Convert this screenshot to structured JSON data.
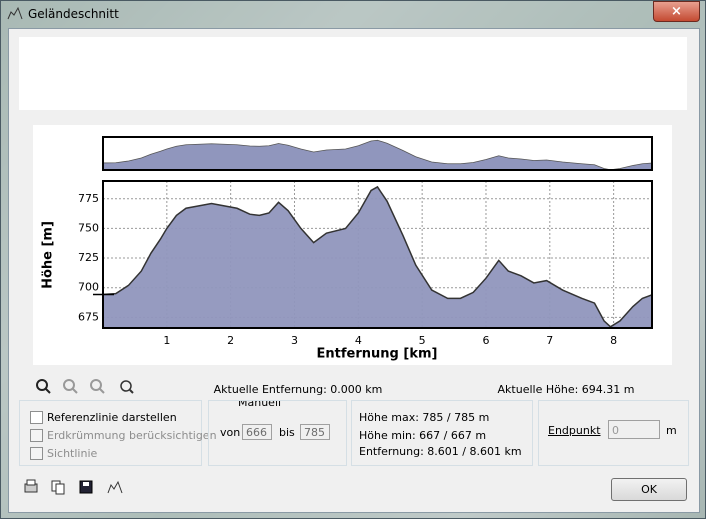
{
  "window": {
    "title": "Geländeschnitt"
  },
  "chart_data": {
    "type": "area",
    "xlabel": "Entfernung [km]",
    "ylabel": "Höhe [m]",
    "x": [
      0,
      0.2,
      0.4,
      0.6,
      0.75,
      0.9,
      1.0,
      1.15,
      1.3,
      1.5,
      1.7,
      1.9,
      2.1,
      2.3,
      2.45,
      2.6,
      2.75,
      2.9,
      3.1,
      3.3,
      3.5,
      3.8,
      4.0,
      4.2,
      4.3,
      4.45,
      4.7,
      4.9,
      5.15,
      5.4,
      5.6,
      5.8,
      6.0,
      6.2,
      6.35,
      6.55,
      6.75,
      6.95,
      7.2,
      7.5,
      7.7,
      7.85,
      7.95,
      8.1,
      8.3,
      8.45,
      8.601
    ],
    "series": [
      {
        "color": "#9096bd",
        "values": [
          694.31,
          695,
          702,
          714,
          729,
          741,
          750,
          761,
          767,
          769,
          771,
          769,
          767,
          762,
          761,
          763,
          772,
          765,
          750,
          738,
          746,
          750,
          763,
          782,
          785,
          773,
          744,
          719,
          698,
          691,
          691,
          696,
          708,
          723,
          714,
          710,
          704,
          706,
          698,
          691,
          687,
          672,
          667,
          672,
          684,
          691,
          694
        ]
      }
    ],
    "xlim": [
      0,
      8.601
    ],
    "ylim": [
      666,
      790
    ],
    "xticks": [
      1,
      2,
      3,
      4,
      5,
      6,
      7,
      8
    ],
    "yticks": [
      675,
      700,
      725,
      750,
      775
    ],
    "grid": true
  },
  "status": {
    "distance": "Aktuelle Entfernung: 0.000 km",
    "height": "Aktuelle Höhe: 694.31 m"
  },
  "options": {
    "reference_line": "Referenzlinie darstellen",
    "earth_curvature": "Erdkrümmung berücksichtigen",
    "line_of_sight": "Sichtlinie"
  },
  "range": {
    "manual": "Manuell",
    "from_label": "von",
    "from": "666",
    "to_label": "bis",
    "to": "785"
  },
  "stats": {
    "max": "Höhe max: 785 / 785 m",
    "min": "Höhe min: 667 / 667 m",
    "distance": "Entfernung: 8.601 / 8.601 km"
  },
  "endpoint": {
    "label": "Endpunkt",
    "value": "0",
    "unit": "m"
  },
  "buttons": {
    "ok": "OK"
  }
}
